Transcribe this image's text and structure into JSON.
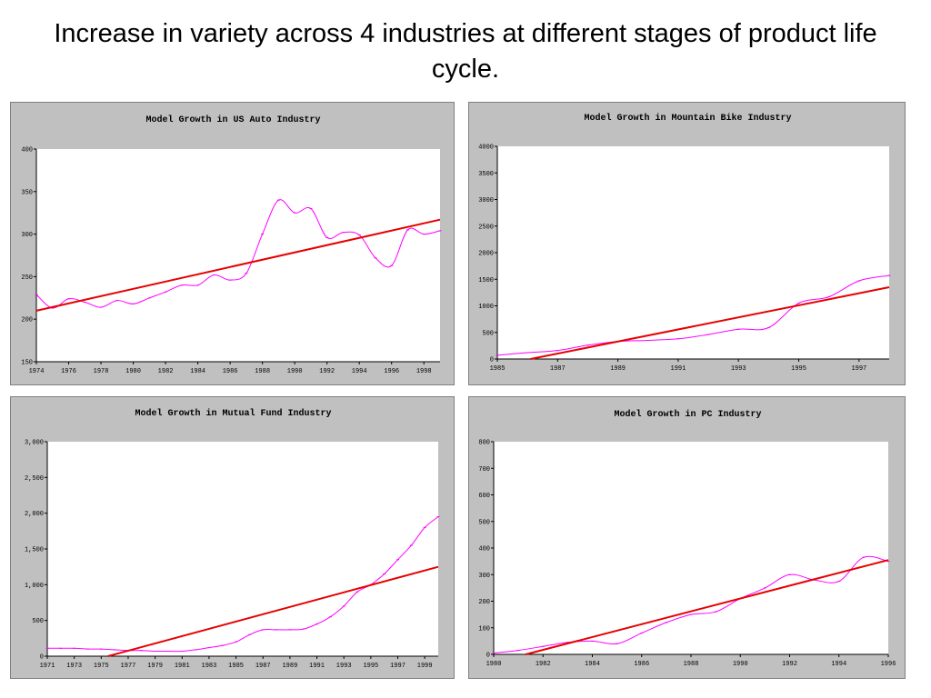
{
  "slide": {
    "title": "Increase in variety across 4 industries at different stages of product life cycle."
  },
  "chart_data": [
    {
      "type": "line",
      "title": "Model Growth in US Auto Industry",
      "xlabel": "",
      "ylabel": "",
      "xlim": [
        1974,
        1999
      ],
      "ylim": [
        150,
        400
      ],
      "x_ticks": [
        "1974",
        "1976",
        "1978",
        "1980",
        "1982",
        "1984",
        "1986",
        "1988",
        "1990",
        "1992",
        "1994",
        "1996",
        "1998"
      ],
      "y_ticks": [
        "150",
        "200",
        "250",
        "300",
        "350",
        "400"
      ],
      "series": [
        {
          "color": "#ff00ff",
          "x": [
            1974,
            1975,
            1976,
            1977,
            1978,
            1979,
            1980,
            1981,
            1982,
            1983,
            1984,
            1985,
            1986,
            1987,
            1988,
            1989,
            1990,
            1991,
            1992,
            1993,
            1994,
            1995,
            1996,
            1997,
            1998,
            1999
          ],
          "y": [
            229,
            213,
            224,
            220,
            214,
            222,
            218,
            225,
            232,
            240,
            240,
            252,
            246,
            254,
            300,
            340,
            325,
            330,
            296,
            302,
            299,
            272,
            263,
            305,
            300,
            304
          ]
        },
        {
          "color": "#e60000",
          "x": [
            1974,
            1999
          ],
          "y": [
            210,
            317
          ]
        }
      ]
    },
    {
      "type": "line",
      "title": "Model Growth in Mountain Bike Industry",
      "xlabel": "",
      "ylabel": "",
      "xlim": [
        1985,
        1998
      ],
      "ylim": [
        0,
        4000
      ],
      "x_ticks": [
        "1985",
        "1987",
        "1989",
        "1991",
        "1993",
        "1995",
        "1997"
      ],
      "y_ticks": [
        "0",
        "500",
        "1000",
        "1500",
        "2000",
        "2500",
        "3000",
        "3500",
        "4000"
      ],
      "series": [
        {
          "color": "#ff00ff",
          "x": [
            1985,
            1986,
            1987,
            1988,
            1989,
            1990,
            1991,
            1992,
            1993,
            1994,
            1995,
            1996,
            1997,
            1998
          ],
          "y": [
            70,
            120,
            160,
            260,
            330,
            350,
            380,
            460,
            560,
            590,
            1050,
            1170,
            1470,
            1570
          ]
        },
        {
          "color": "#e60000",
          "x": [
            1986.1,
            1998
          ],
          "y": [
            0,
            1350
          ]
        }
      ]
    },
    {
      "type": "line",
      "title": "Model Growth in Mutual Fund Industry",
      "xlabel": "",
      "ylabel": "",
      "xlim": [
        1971,
        2000
      ],
      "ylim": [
        0,
        3000
      ],
      "x_ticks": [
        "1971",
        "1973",
        "1975",
        "1977",
        "1979",
        "1981",
        "1983",
        "1985",
        "1987",
        "1989",
        "1991",
        "1993",
        "1995",
        "1997",
        "1999"
      ],
      "y_ticks": [
        "0",
        "500",
        "1,000",
        "1,500",
        "2,000",
        "2,500",
        "3,000"
      ],
      "series": [
        {
          "color": "#ff00ff",
          "x": [
            1971,
            1972,
            1973,
            1974,
            1975,
            1976,
            1977,
            1978,
            1979,
            1980,
            1981,
            1982,
            1983,
            1984,
            1985,
            1986,
            1987,
            1988,
            1989,
            1990,
            1991,
            1992,
            1993,
            1994,
            1995,
            1996,
            1997,
            1998,
            1999,
            2000
          ],
          "y": [
            110,
            110,
            110,
            100,
            100,
            90,
            80,
            80,
            70,
            70,
            70,
            90,
            120,
            150,
            200,
            300,
            370,
            370,
            370,
            380,
            450,
            550,
            700,
            900,
            1000,
            1150,
            1350,
            1550,
            1800,
            1950
          ]
        },
        {
          "color": "#e60000",
          "x": [
            1975.5,
            2000
          ],
          "y": [
            0,
            1250
          ]
        }
      ]
    },
    {
      "type": "line",
      "title": "Model Growth in PC Industry",
      "xlabel": "",
      "ylabel": "",
      "xlim": [
        1980,
        1996
      ],
      "ylim": [
        0,
        800
      ],
      "x_ticks": [
        "1980",
        "1982",
        "1984",
        "1986",
        "1988",
        "1990",
        "1992",
        "1994",
        "1996"
      ],
      "y_ticks": [
        "0",
        "100",
        "200",
        "300",
        "400",
        "500",
        "600",
        "700",
        "800"
      ],
      "series": [
        {
          "color": "#ff00ff",
          "x": [
            1980,
            1981,
            1982,
            1983,
            1984,
            1985,
            1986,
            1987,
            1988,
            1989,
            1990,
            1991,
            1992,
            1993,
            1994,
            1995,
            1996
          ],
          "y": [
            5,
            15,
            30,
            45,
            50,
            40,
            80,
            120,
            150,
            160,
            210,
            250,
            300,
            280,
            275,
            365,
            350
          ]
        },
        {
          "color": "#e60000",
          "x": [
            1981.3,
            1996
          ],
          "y": [
            0,
            355
          ]
        }
      ]
    }
  ]
}
